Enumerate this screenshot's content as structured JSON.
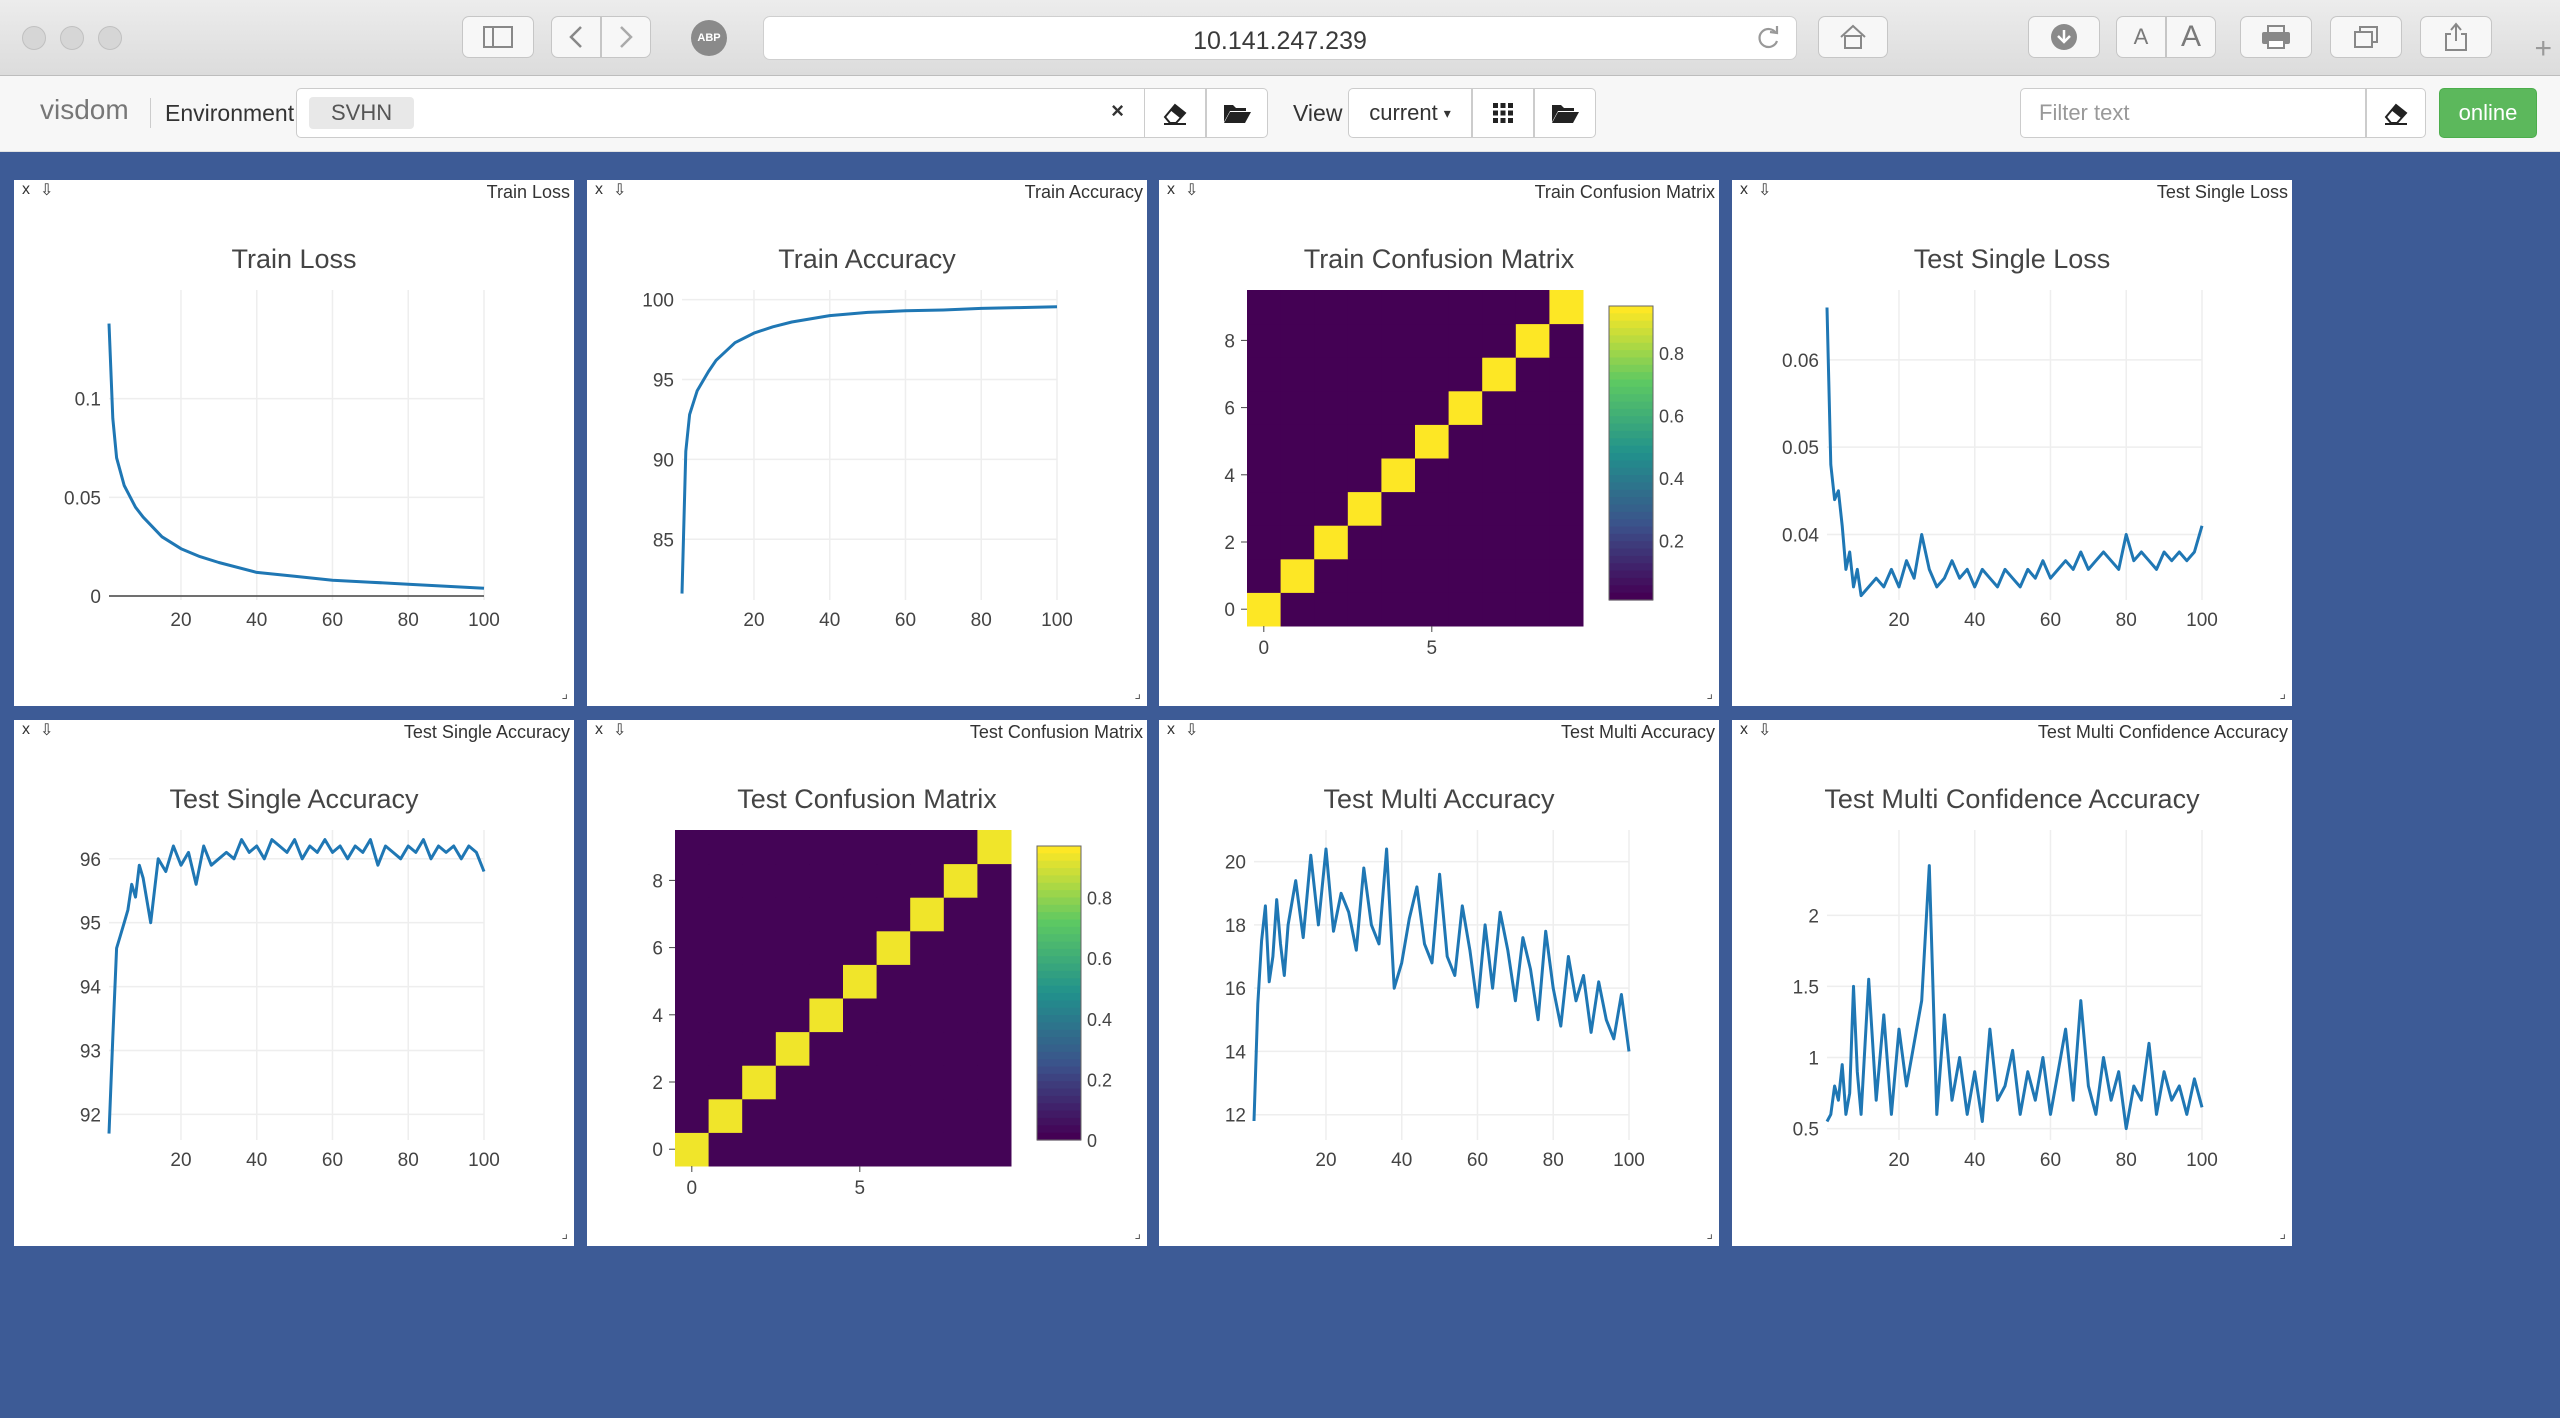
{
  "browser": {
    "url": "10.141.247.239",
    "abp_label": "ABP",
    "font_small_label": "A",
    "font_large_label": "A",
    "new_tab_label": "+"
  },
  "navbar": {
    "brand": "visdom",
    "environment_label": "Environment",
    "environment_selected": "SVHN",
    "clear_label": "×",
    "view_label": "View",
    "view_selected": "current",
    "filter_placeholder": "Filter text",
    "status": "online"
  },
  "colors": {
    "page_bg": "#3d5b96",
    "line": "#1f77b4",
    "online": "#5cb85c",
    "viridis_low": "#440154",
    "viridis_high": "#fde725"
  },
  "panes": [
    {
      "label": "Train Loss",
      "title": "Train Loss"
    },
    {
      "label": "Train Accuracy",
      "title": "Train Accuracy"
    },
    {
      "label": "Train Confusion Matrix",
      "title": "Train Confusion Matrix"
    },
    {
      "label": "Test Single Loss",
      "title": "Test Single Loss"
    },
    {
      "label": "Test Single Accuracy",
      "title": "Test Single Accuracy"
    },
    {
      "label": "Test Confusion Matrix",
      "title": "Test Confusion Matrix"
    },
    {
      "label": "Test Multi Accuracy",
      "title": "Test Multi Accuracy"
    },
    {
      "label": "Test Multi Confidence Accuracy",
      "title": "Test Multi Confidence Accuracy"
    }
  ],
  "chart_data": [
    {
      "type": "line",
      "title": "Train Loss",
      "x": [
        1,
        2,
        3,
        5,
        8,
        10,
        15,
        20,
        25,
        30,
        40,
        50,
        60,
        70,
        80,
        90,
        100
      ],
      "y": [
        0.138,
        0.09,
        0.07,
        0.056,
        0.045,
        0.04,
        0.03,
        0.024,
        0.02,
        0.017,
        0.012,
        0.01,
        0.008,
        0.007,
        0.006,
        0.005,
        0.004
      ],
      "xticks": [
        "20",
        "40",
        "60",
        "80",
        "100"
      ],
      "yticks": [
        "0",
        "0.05",
        "0.1"
      ],
      "xlim": [
        1,
        100
      ],
      "ylim": [
        -0.002,
        0.155
      ],
      "grid": true
    },
    {
      "type": "line",
      "title": "Train Accuracy",
      "x": [
        1,
        2,
        3,
        5,
        8,
        10,
        15,
        20,
        25,
        30,
        40,
        50,
        60,
        70,
        80,
        90,
        100
      ],
      "y": [
        81.6,
        90.5,
        92.8,
        94.3,
        95.5,
        96.2,
        97.3,
        97.9,
        98.3,
        98.6,
        99.0,
        99.2,
        99.3,
        99.35,
        99.45,
        99.5,
        99.55
      ],
      "xticks": [
        "20",
        "40",
        "60",
        "80",
        "100"
      ],
      "yticks": [
        "85",
        "90",
        "95",
        "100"
      ],
      "xlim": [
        1,
        100
      ],
      "ylim": [
        81.2,
        100.6
      ],
      "grid": true
    },
    {
      "type": "heatmap",
      "title": "Train Confusion Matrix",
      "size": 10,
      "diagonal": 0.97,
      "offdiag": 0.003,
      "xticks": [
        "0",
        "5"
      ],
      "yticks": [
        "0",
        "2",
        "4",
        "6",
        "8"
      ],
      "colorbar_ticks": [
        "0.2",
        "0.4",
        "0.6",
        "0.8"
      ],
      "colorbar_range": [
        0.01,
        0.95
      ]
    },
    {
      "type": "line",
      "title": "Test Single Loss",
      "x": [
        1,
        2,
        3,
        4,
        5,
        6,
        7,
        8,
        9,
        10,
        12,
        14,
        16,
        18,
        20,
        22,
        24,
        26,
        28,
        30,
        32,
        34,
        36,
        38,
        40,
        42,
        44,
        46,
        48,
        50,
        52,
        54,
        56,
        58,
        60,
        62,
        64,
        66,
        68,
        70,
        72,
        74,
        76,
        78,
        80,
        82,
        84,
        86,
        88,
        90,
        92,
        94,
        96,
        98,
        100
      ],
      "y": [
        0.066,
        0.048,
        0.044,
        0.045,
        0.041,
        0.036,
        0.038,
        0.034,
        0.036,
        0.033,
        0.034,
        0.035,
        0.034,
        0.036,
        0.034,
        0.037,
        0.035,
        0.04,
        0.036,
        0.034,
        0.035,
        0.037,
        0.035,
        0.036,
        0.034,
        0.036,
        0.035,
        0.034,
        0.036,
        0.035,
        0.034,
        0.036,
        0.035,
        0.037,
        0.035,
        0.036,
        0.037,
        0.036,
        0.038,
        0.036,
        0.037,
        0.038,
        0.037,
        0.036,
        0.04,
        0.037,
        0.038,
        0.037,
        0.036,
        0.038,
        0.037,
        0.038,
        0.037,
        0.038,
        0.041
      ],
      "xticks": [
        "20",
        "40",
        "60",
        "80",
        "100"
      ],
      "yticks": [
        "0.04",
        "0.05",
        "0.06"
      ],
      "xlim": [
        1,
        100
      ],
      "ylim": [
        0.0325,
        0.068
      ],
      "grid": true
    },
    {
      "type": "line",
      "title": "Test Single Accuracy",
      "x": [
        1,
        2,
        3,
        4,
        5,
        6,
        7,
        8,
        9,
        10,
        12,
        14,
        16,
        18,
        20,
        22,
        24,
        26,
        28,
        30,
        32,
        34,
        36,
        38,
        40,
        42,
        44,
        46,
        48,
        50,
        52,
        54,
        56,
        58,
        60,
        62,
        64,
        66,
        68,
        70,
        72,
        74,
        76,
        78,
        80,
        82,
        84,
        86,
        88,
        90,
        92,
        94,
        96,
        98,
        100
      ],
      "y": [
        91.7,
        93.2,
        94.6,
        94.8,
        95.0,
        95.2,
        95.6,
        95.4,
        95.9,
        95.7,
        95.0,
        96.0,
        95.8,
        96.2,
        95.9,
        96.1,
        95.6,
        96.2,
        95.9,
        96.0,
        96.1,
        96.0,
        96.3,
        96.1,
        96.2,
        96.0,
        96.3,
        96.2,
        96.1,
        96.3,
        96.0,
        96.2,
        96.1,
        96.3,
        96.1,
        96.2,
        96.0,
        96.2,
        96.1,
        96.3,
        95.9,
        96.2,
        96.1,
        96.0,
        96.2,
        96.1,
        96.3,
        96.0,
        96.2,
        96.1,
        96.2,
        96.0,
        96.2,
        96.1,
        95.8
      ],
      "xticks": [
        "20",
        "40",
        "60",
        "80",
        "100"
      ],
      "yticks": [
        "92",
        "93",
        "94",
        "95",
        "96"
      ],
      "xlim": [
        1,
        100
      ],
      "ylim": [
        91.6,
        96.45
      ],
      "grid": true
    },
    {
      "type": "heatmap",
      "title": "Test Confusion Matrix",
      "size": 10,
      "diagonal": 0.95,
      "offdiag": 0.01,
      "xticks": [
        "0",
        "5"
      ],
      "yticks": [
        "0",
        "2",
        "4",
        "6",
        "8"
      ],
      "colorbar_ticks": [
        "0",
        "0.2",
        "0.4",
        "0.6",
        "0.8"
      ],
      "colorbar_range": [
        0,
        0.97
      ]
    },
    {
      "type": "line",
      "title": "Test Multi Accuracy",
      "x": [
        1,
        2,
        3,
        4,
        5,
        6,
        7,
        8,
        9,
        10,
        12,
        14,
        16,
        18,
        20,
        22,
        24,
        26,
        28,
        30,
        32,
        34,
        36,
        38,
        40,
        42,
        44,
        46,
        48,
        50,
        52,
        54,
        56,
        58,
        60,
        62,
        64,
        66,
        68,
        70,
        72,
        74,
        76,
        78,
        80,
        82,
        84,
        86,
        88,
        90,
        92,
        94,
        96,
        98,
        100
      ],
      "y": [
        11.8,
        15.5,
        17.5,
        18.6,
        16.2,
        17.0,
        18.8,
        17.4,
        16.4,
        18.0,
        19.4,
        17.6,
        20.2,
        18.0,
        20.4,
        17.8,
        19.0,
        18.4,
        17.2,
        19.8,
        18.0,
        17.4,
        20.4,
        16.0,
        16.8,
        18.2,
        19.2,
        17.4,
        16.8,
        19.6,
        17.0,
        16.4,
        18.6,
        17.2,
        15.4,
        18.0,
        16.0,
        18.4,
        17.2,
        15.6,
        17.6,
        16.6,
        15.0,
        17.8,
        16.0,
        14.8,
        17.0,
        15.6,
        16.4,
        14.6,
        16.2,
        15.0,
        14.4,
        15.8,
        14.0
      ],
      "xticks": [
        "20",
        "40",
        "60",
        "80",
        "100"
      ],
      "yticks": [
        "12",
        "14",
        "16",
        "18",
        "20"
      ],
      "xlim": [
        1,
        100
      ],
      "ylim": [
        11.2,
        21.0
      ],
      "grid": true
    },
    {
      "type": "line",
      "title": "Test Multi Confidence Accuracy",
      "x": [
        1,
        2,
        3,
        4,
        5,
        6,
        7,
        8,
        9,
        10,
        12,
        14,
        16,
        18,
        20,
        22,
        24,
        26,
        28,
        30,
        32,
        34,
        36,
        38,
        40,
        42,
        44,
        46,
        48,
        50,
        52,
        54,
        56,
        58,
        60,
        62,
        64,
        66,
        68,
        70,
        72,
        74,
        76,
        78,
        80,
        82,
        84,
        86,
        88,
        90,
        92,
        94,
        96,
        98,
        100
      ],
      "y": [
        0.55,
        0.6,
        0.8,
        0.7,
        0.95,
        0.6,
        0.75,
        1.5,
        0.9,
        0.6,
        1.55,
        0.7,
        1.3,
        0.6,
        1.2,
        0.8,
        1.1,
        1.4,
        2.35,
        0.6,
        1.3,
        0.7,
        1.0,
        0.6,
        0.9,
        0.55,
        1.2,
        0.7,
        0.8,
        1.05,
        0.6,
        0.9,
        0.7,
        1.0,
        0.6,
        0.9,
        1.2,
        0.7,
        1.4,
        0.8,
        0.6,
        1.0,
        0.7,
        0.9,
        0.5,
        0.8,
        0.7,
        1.1,
        0.6,
        0.9,
        0.7,
        0.8,
        0.6,
        0.85,
        0.65
      ],
      "xticks": [
        "20",
        "40",
        "60",
        "80",
        "100"
      ],
      "yticks": [
        "0.5",
        "1",
        "1.5",
        "2"
      ],
      "xlim": [
        1,
        100
      ],
      "ylim": [
        0.42,
        2.6
      ],
      "grid": true
    }
  ]
}
